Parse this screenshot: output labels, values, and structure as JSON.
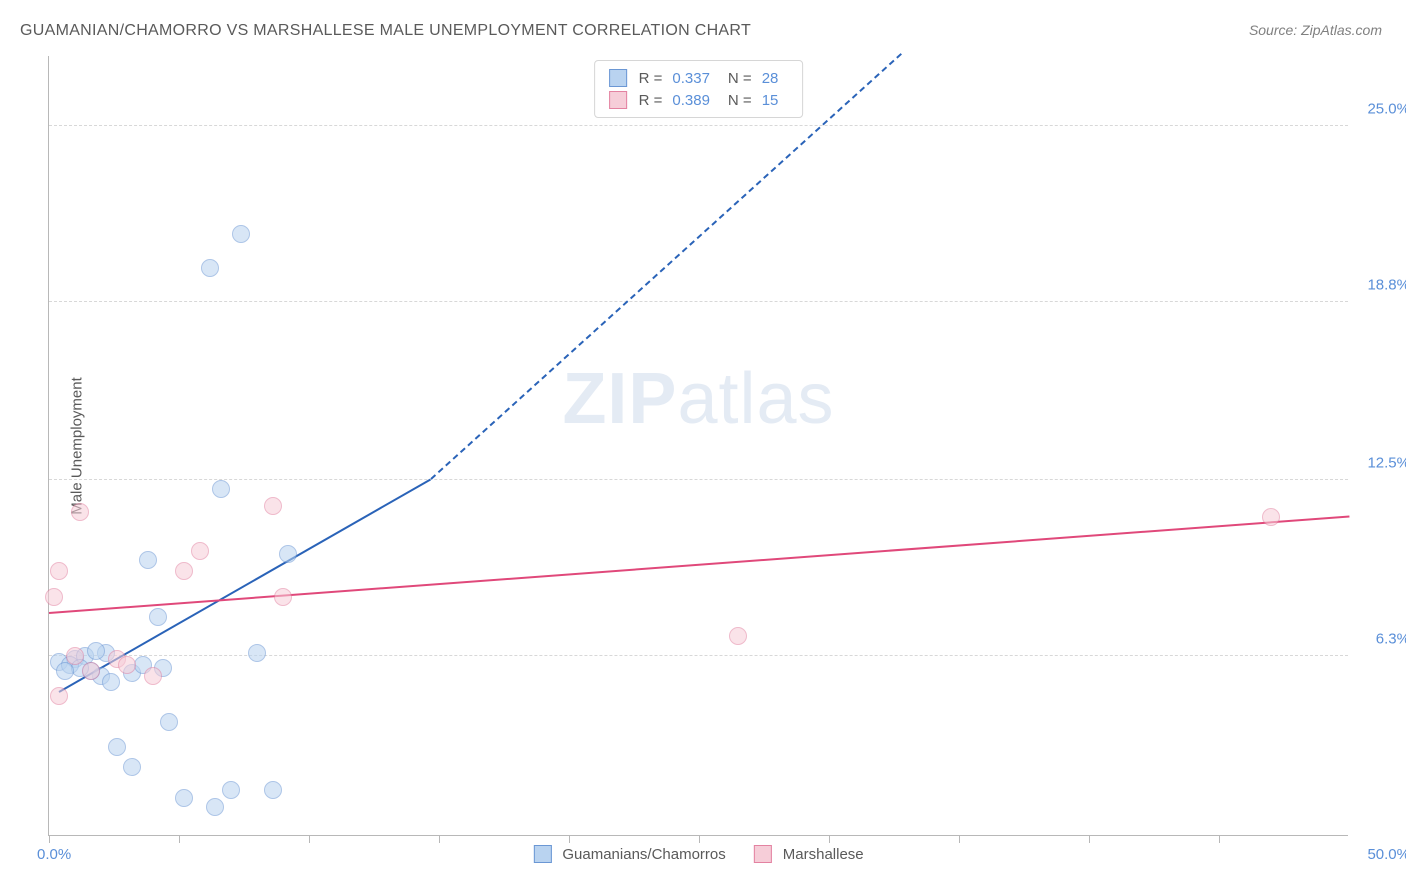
{
  "title": "GUAMANIAN/CHAMORRO VS MARSHALLESE MALE UNEMPLOYMENT CORRELATION CHART",
  "source": "Source: ZipAtlas.com",
  "y_axis_label": "Male Unemployment",
  "watermark_a": "ZIP",
  "watermark_b": "atlas",
  "chart": {
    "type": "scatter",
    "xlim": [
      0,
      50
    ],
    "ylim": [
      0,
      27.5
    ],
    "y_ticks": [
      6.3,
      12.5,
      18.8,
      25.0
    ],
    "y_tick_labels": [
      "6.3%",
      "12.5%",
      "18.8%",
      "25.0%"
    ],
    "x_ticks": [
      0,
      5,
      10,
      15,
      20,
      25,
      30,
      35,
      40,
      45
    ],
    "x_origin_label": "0.0%",
    "x_max_label": "50.0%",
    "background_color": "#ffffff",
    "grid_color": "#d8d8d8",
    "axis_color": "#b8b8b8",
    "tick_label_color": "#5a8fd8",
    "point_radius": 9,
    "point_opacity": 0.55,
    "series": [
      {
        "name": "Guamanians/Chamorros",
        "legend_label": "Guamanians/Chamorros",
        "fill": "#b9d3f0",
        "stroke": "#6b97d4",
        "line_color": "#2a63b8",
        "r_label": "R =",
        "r_value": "0.337",
        "n_label": "N =",
        "n_value": "28",
        "points": [
          {
            "x": 6.2,
            "y": 20.0
          },
          {
            "x": 7.4,
            "y": 21.2
          },
          {
            "x": 6.6,
            "y": 12.2
          },
          {
            "x": 9.2,
            "y": 9.9
          },
          {
            "x": 8.0,
            "y": 6.4
          },
          {
            "x": 4.2,
            "y": 7.7
          },
          {
            "x": 3.8,
            "y": 9.7
          },
          {
            "x": 1.0,
            "y": 6.2
          },
          {
            "x": 1.4,
            "y": 6.3
          },
          {
            "x": 2.0,
            "y": 5.6
          },
          {
            "x": 2.4,
            "y": 5.4
          },
          {
            "x": 3.2,
            "y": 5.7
          },
          {
            "x": 0.4,
            "y": 6.1
          },
          {
            "x": 0.8,
            "y": 6.0
          },
          {
            "x": 1.6,
            "y": 5.8
          },
          {
            "x": 3.6,
            "y": 6.0
          },
          {
            "x": 4.4,
            "y": 5.9
          },
          {
            "x": 2.6,
            "y": 3.1
          },
          {
            "x": 3.2,
            "y": 2.4
          },
          {
            "x": 4.6,
            "y": 4.0
          },
          {
            "x": 5.2,
            "y": 1.3
          },
          {
            "x": 6.4,
            "y": 1.0
          },
          {
            "x": 7.0,
            "y": 1.6
          },
          {
            "x": 8.6,
            "y": 1.6
          },
          {
            "x": 2.2,
            "y": 6.4
          },
          {
            "x": 1.2,
            "y": 5.9
          },
          {
            "x": 0.6,
            "y": 5.8
          },
          {
            "x": 1.8,
            "y": 6.5
          }
        ],
        "trend": {
          "x1": 0.4,
          "y1": 5.0,
          "x2": 14.7,
          "y2": 12.5,
          "dash_to_x": 32.8,
          "dash_to_y": 27.5
        }
      },
      {
        "name": "Marshallese",
        "legend_label": "Marshallese",
        "fill": "#f6cdd8",
        "stroke": "#e382a1",
        "line_color": "#e0487a",
        "r_label": "R =",
        "r_value": "0.389",
        "n_label": "N =",
        "n_value": "15",
        "points": [
          {
            "x": 0.2,
            "y": 8.4
          },
          {
            "x": 0.4,
            "y": 9.3
          },
          {
            "x": 1.2,
            "y": 11.4
          },
          {
            "x": 0.4,
            "y": 4.9
          },
          {
            "x": 1.6,
            "y": 5.8
          },
          {
            "x": 2.6,
            "y": 6.2
          },
          {
            "x": 3.0,
            "y": 6.0
          },
          {
            "x": 4.0,
            "y": 5.6
          },
          {
            "x": 5.2,
            "y": 9.3
          },
          {
            "x": 5.8,
            "y": 10.0
          },
          {
            "x": 8.6,
            "y": 11.6
          },
          {
            "x": 9.0,
            "y": 8.4
          },
          {
            "x": 26.5,
            "y": 7.0
          },
          {
            "x": 47.0,
            "y": 11.2
          },
          {
            "x": 1.0,
            "y": 6.3
          }
        ],
        "trend": {
          "x1": 0,
          "y1": 7.8,
          "x2": 50,
          "y2": 11.2
        }
      }
    ]
  }
}
